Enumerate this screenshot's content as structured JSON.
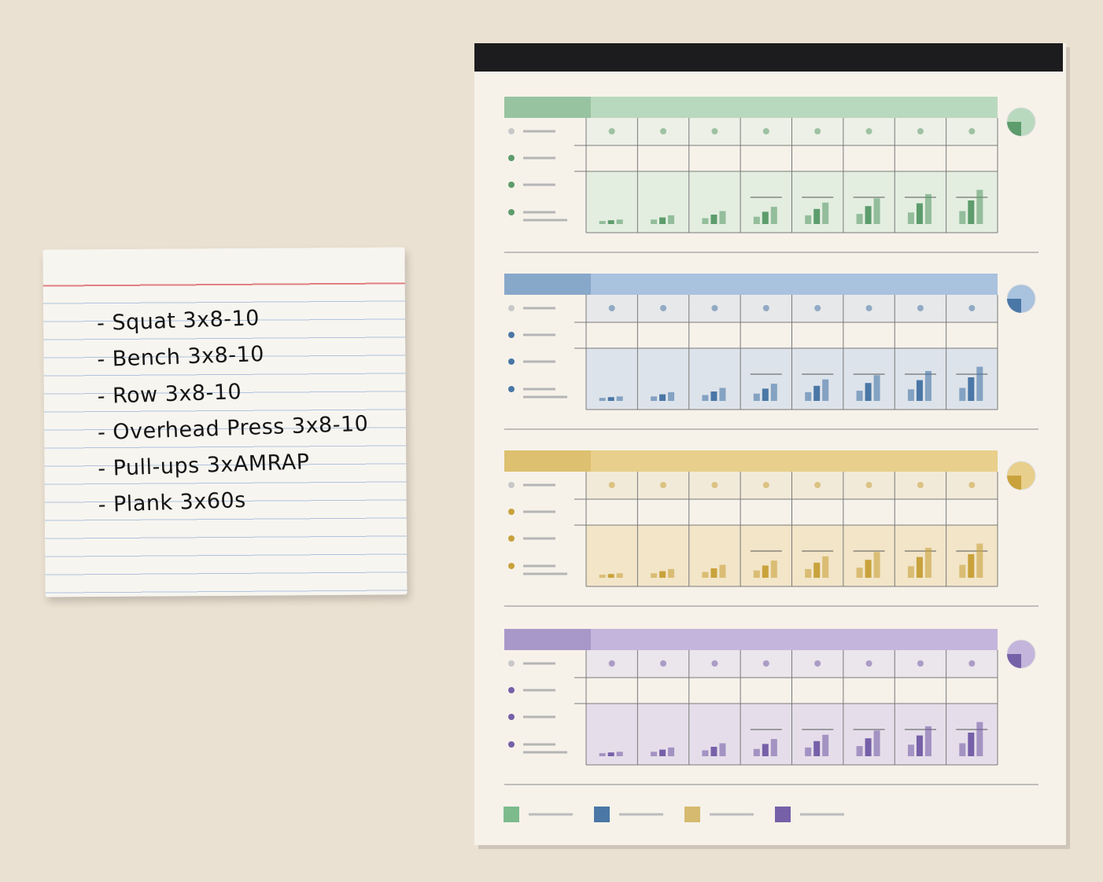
{
  "note": {
    "items": [
      "- Squat 3x8-10",
      "- Bench 3x8-10",
      "- Row 3x8-10",
      "- Overhead Press 3x8-10",
      "- Pull-ups 3xAMRAP",
      "- Plank 3x60s"
    ]
  }
}
